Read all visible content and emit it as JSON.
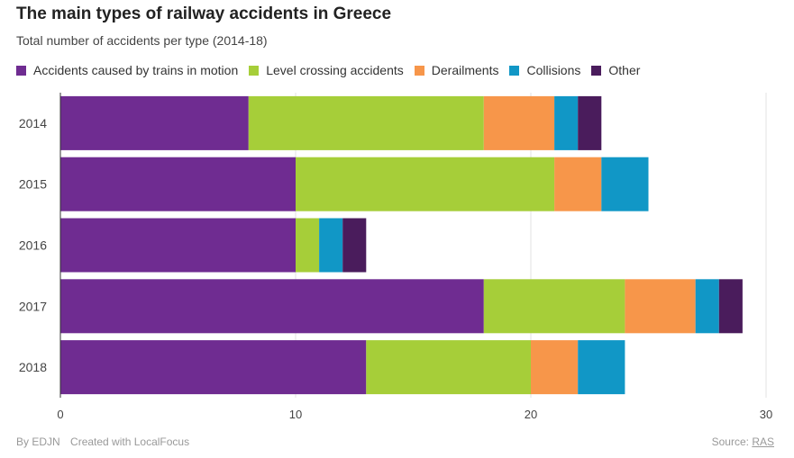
{
  "chart_data": {
    "type": "bar",
    "orientation": "horizontal",
    "stacked": true,
    "title": "The main types of railway accidents in Greece",
    "subtitle": "Total number of accidents per type (2014-18)",
    "categories": [
      "2014",
      "2015",
      "2016",
      "2017",
      "2018"
    ],
    "series": [
      {
        "name": "Accidents caused by trains in motion",
        "color": "#6f2c91",
        "values": [
          8,
          10,
          10,
          18,
          13
        ]
      },
      {
        "name": "Level crossing accidents",
        "color": "#a6ce39",
        "values": [
          10,
          11,
          1,
          6,
          7
        ]
      },
      {
        "name": "Derailments",
        "color": "#f7964a",
        "values": [
          3,
          2,
          0,
          3,
          2
        ]
      },
      {
        "name": "Collisions",
        "color": "#1197c6",
        "values": [
          1,
          2,
          1,
          1,
          2
        ]
      },
      {
        "name": "Other",
        "color": "#4a1c5c",
        "values": [
          1,
          0,
          1,
          1,
          0
        ]
      }
    ],
    "xlim": [
      0,
      30
    ],
    "xticks": [
      "0",
      "10",
      "20",
      "30"
    ],
    "grid": true,
    "legend_position": "top"
  },
  "footer": {
    "byline": "By EDJN",
    "created_with": "Created with LocalFocus",
    "source_label": "Source:",
    "source_link": "RAS"
  }
}
